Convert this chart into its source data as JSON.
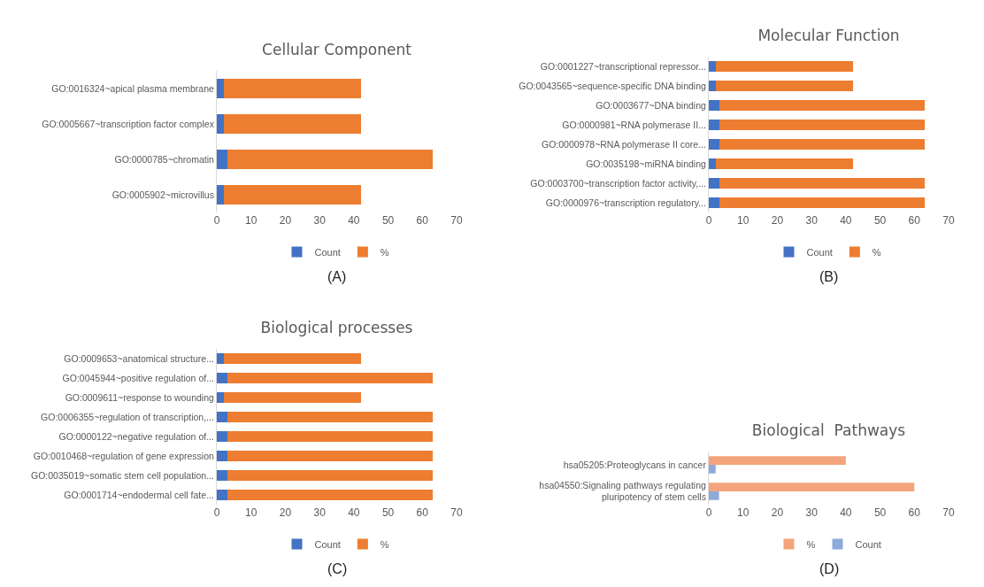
{
  "chart_data": [
    {
      "type": "bar",
      "orientation": "horizontal",
      "stacked": true,
      "title": "Cellular Component",
      "annotations": [
        "(A)"
      ],
      "legend": "bottom",
      "categories": [
        "GO:0016324~apical plasma membrane",
        "GO:0005667~transcription factor complex",
        "GO:0000785~chromatin",
        "GO:0005902~microvillus"
      ],
      "series": [
        {
          "name": "Count",
          "color": "#4472c4",
          "values": [
            2,
            2,
            3,
            2
          ]
        },
        {
          "name": "%",
          "color": "#ed7d31",
          "values": [
            40,
            40,
            60,
            40
          ]
        }
      ],
      "xlim": [
        0,
        70
      ],
      "xticks": [
        0,
        10,
        20,
        30,
        40,
        50,
        60,
        70
      ]
    },
    {
      "type": "bar",
      "orientation": "horizontal",
      "stacked": true,
      "title": "Molecular Function",
      "annotations": [
        "(B)"
      ],
      "legend": "bottom",
      "categories": [
        "GO:0001227~transcriptional repressor...",
        "GO:0043565~sequence-specific DNA binding",
        "GO:0003677~DNA binding",
        "GO:0000981~RNA polymerase II...",
        "GO:0000978~RNA polymerase II core...",
        "GO:0035198~miRNA binding",
        "GO:0003700~transcription factor activity,...",
        "GO:0000976~transcription regulatory..."
      ],
      "series": [
        {
          "name": "Count",
          "color": "#4472c4",
          "values": [
            2,
            2,
            3,
            3,
            3,
            2,
            3,
            3
          ]
        },
        {
          "name": "%",
          "color": "#ed7d31",
          "values": [
            40,
            40,
            60,
            60,
            60,
            40,
            60,
            60
          ]
        }
      ],
      "xlim": [
        0,
        70
      ],
      "xticks": [
        0,
        10,
        20,
        30,
        40,
        50,
        60,
        70
      ]
    },
    {
      "type": "bar",
      "orientation": "horizontal",
      "stacked": true,
      "title": "Biological processes",
      "annotations": [
        "(C)"
      ],
      "legend": "bottom",
      "categories": [
        "GO:0009653~anatomical structure...",
        "GO:0045944~positive regulation of...",
        "GO:0009611~response to wounding",
        "GO:0006355~regulation of transcription,...",
        "GO:0000122~negative regulation of...",
        "GO:0010468~regulation of gene expression",
        "GO:0035019~somatic stem cell population...",
        "GO:0001714~endodermal cell fate..."
      ],
      "series": [
        {
          "name": "Count",
          "color": "#4472c4",
          "values": [
            2,
            3,
            2,
            3,
            3,
            3,
            3,
            3
          ]
        },
        {
          "name": "%",
          "color": "#ed7d31",
          "values": [
            40,
            60,
            40,
            60,
            60,
            60,
            60,
            60
          ]
        }
      ],
      "xlim": [
        0,
        70
      ],
      "xticks": [
        0,
        10,
        20,
        30,
        40,
        50,
        60,
        70
      ]
    },
    {
      "type": "bar",
      "orientation": "horizontal",
      "title": "Biological  Pathways",
      "annotations": [
        "(D)"
      ],
      "legend": "bottom",
      "categories": [
        "hsa05205:Proteoglycans in cancer",
        "hsa04550:Signaling pathways regulating pluripotency of stem cells"
      ],
      "series": [
        {
          "name": "%",
          "color": "#f4a47c",
          "values": [
            40,
            60
          ]
        },
        {
          "name": "Count",
          "color": "#8eaadb",
          "values": [
            2,
            3
          ]
        }
      ],
      "xlim": [
        0,
        70
      ],
      "xticks": [
        0,
        10,
        20,
        30,
        40,
        50,
        60,
        70
      ]
    }
  ]
}
